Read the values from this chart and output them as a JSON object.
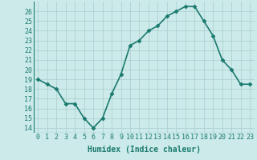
{
  "x": [
    0,
    1,
    2,
    3,
    4,
    5,
    6,
    7,
    8,
    9,
    10,
    11,
    12,
    13,
    14,
    15,
    16,
    17,
    18,
    19,
    20,
    21,
    22,
    23
  ],
  "y": [
    19,
    18.5,
    18,
    16.5,
    16.5,
    15,
    14,
    15,
    17.5,
    19.5,
    22.5,
    23,
    24,
    24.5,
    25.5,
    26,
    26.5,
    26.5,
    25,
    23.5,
    21,
    20,
    18.5,
    18.5
  ],
  "line_color": "#1a7a6e",
  "marker_color": "#1a7a6e",
  "bg_color": "#cceaea",
  "grid_color": "#aacccc",
  "xlabel": "Humidex (Indice chaleur)",
  "ylim": [
    13.5,
    27
  ],
  "xlim": [
    -0.5,
    23.5
  ],
  "yticks": [
    14,
    15,
    16,
    17,
    18,
    19,
    20,
    21,
    22,
    23,
    24,
    25,
    26
  ],
  "xticks": [
    0,
    1,
    2,
    3,
    4,
    5,
    6,
    7,
    8,
    9,
    10,
    11,
    12,
    13,
    14,
    15,
    16,
    17,
    18,
    19,
    20,
    21,
    22,
    23
  ],
  "xlabel_fontsize": 7,
  "tick_fontsize": 6,
  "linewidth": 1.2,
  "markersize": 2.5
}
